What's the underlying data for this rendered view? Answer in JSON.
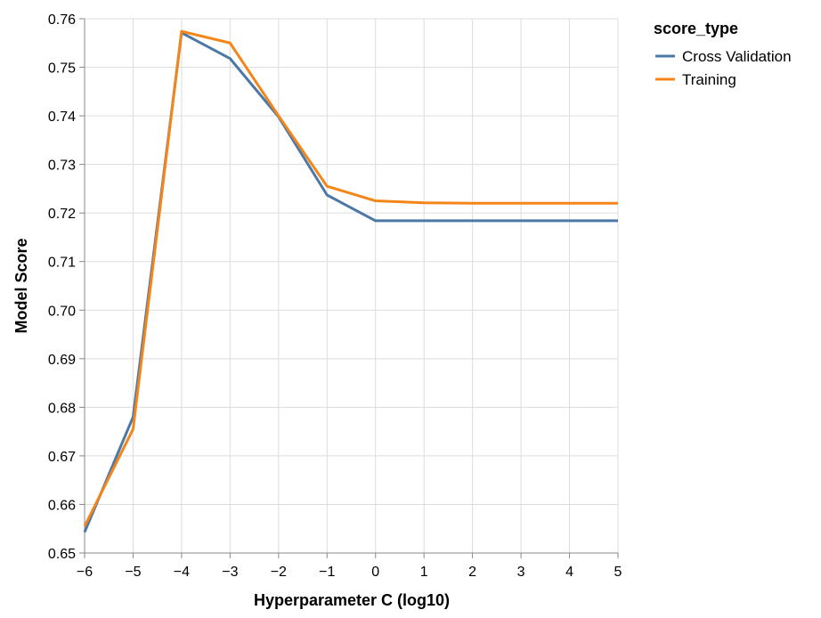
{
  "chart_data": {
    "type": "line",
    "xlabel": "Hyperparameter C (log10)",
    "ylabel": "Model Score",
    "x": [
      -6,
      -5,
      -4,
      -3,
      -2,
      -1,
      0,
      1,
      2,
      3,
      4,
      5
    ],
    "xlim": [
      -6,
      5
    ],
    "ylim": [
      0.65,
      0.76
    ],
    "x_ticks": [
      -6,
      -5,
      -4,
      -3,
      -2,
      -1,
      0,
      1,
      2,
      3,
      4,
      5
    ],
    "x_tick_labels": [
      "−6",
      "−5",
      "−4",
      "−3",
      "−2",
      "−1",
      "0",
      "1",
      "2",
      "3",
      "4",
      "5"
    ],
    "y_ticks": [
      0.65,
      0.66,
      0.67,
      0.68,
      0.69,
      0.7,
      0.71,
      0.72,
      0.73,
      0.74,
      0.75,
      0.76
    ],
    "y_tick_labels": [
      "0.65",
      "0.66",
      "0.67",
      "0.68",
      "0.69",
      "0.70",
      "0.71",
      "0.72",
      "0.73",
      "0.74",
      "0.75",
      "0.76"
    ],
    "grid": true,
    "legend": {
      "title": "score_type",
      "position": "top-right"
    },
    "series": [
      {
        "name": "Cross Validation",
        "color": "#4c78a8",
        "values": [
          0.6543,
          0.678,
          0.7571,
          0.7518,
          0.7398,
          0.7237,
          0.7184,
          0.7184,
          0.7184,
          0.7184,
          0.7184,
          0.7184
        ]
      },
      {
        "name": "Training",
        "color": "#f58518",
        "values": [
          0.6555,
          0.6755,
          0.7574,
          0.755,
          0.74,
          0.7255,
          0.7225,
          0.7221,
          0.722,
          0.722,
          0.722,
          0.722
        ]
      }
    ]
  }
}
